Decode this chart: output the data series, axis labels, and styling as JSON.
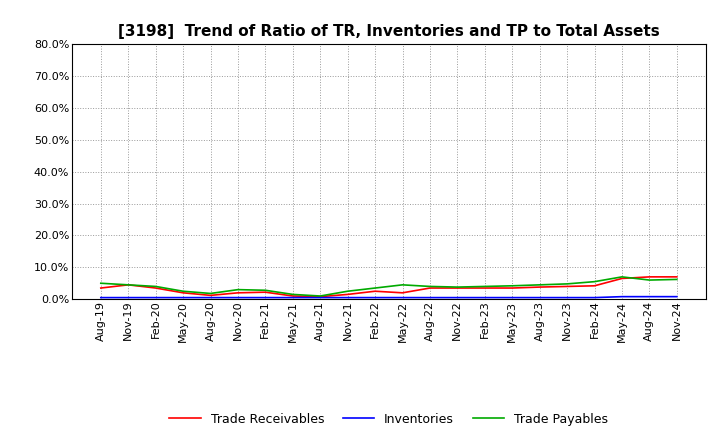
{
  "title": "[3198]  Trend of Ratio of TR, Inventories and TP to Total Assets",
  "x_labels": [
    "Aug-19",
    "Nov-19",
    "Feb-20",
    "May-20",
    "Aug-20",
    "Nov-20",
    "Feb-21",
    "May-21",
    "Aug-21",
    "Nov-21",
    "Feb-22",
    "May-22",
    "Aug-22",
    "Nov-22",
    "Feb-23",
    "May-23",
    "Aug-23",
    "Nov-23",
    "Feb-24",
    "May-24",
    "Aug-24",
    "Nov-24"
  ],
  "trade_receivables": [
    3.5,
    4.5,
    3.5,
    2.0,
    1.2,
    2.0,
    2.2,
    1.0,
    0.8,
    1.5,
    2.5,
    2.0,
    3.5,
    3.5,
    3.5,
    3.5,
    3.8,
    4.0,
    4.2,
    6.5,
    7.0,
    7.0
  ],
  "inventories": [
    0.5,
    0.5,
    0.5,
    0.5,
    0.5,
    0.5,
    0.5,
    0.5,
    0.5,
    0.5,
    0.5,
    0.5,
    0.5,
    0.5,
    0.5,
    0.5,
    0.5,
    0.5,
    0.5,
    0.8,
    0.8,
    0.8
  ],
  "trade_payables": [
    5.0,
    4.5,
    4.0,
    2.5,
    1.8,
    3.0,
    2.8,
    1.5,
    1.0,
    2.5,
    3.5,
    4.5,
    4.0,
    3.8,
    4.0,
    4.2,
    4.5,
    4.8,
    5.5,
    7.0,
    6.0,
    6.2
  ],
  "color_tr": "#ff0000",
  "color_inv": "#0000ff",
  "color_tp": "#00aa00",
  "ylim": [
    0,
    80
  ],
  "yticks": [
    0,
    10,
    20,
    30,
    40,
    50,
    60,
    70,
    80
  ],
  "background_color": "#ffffff",
  "grid_color": "#999999",
  "title_fontsize": 11,
  "tick_fontsize": 8,
  "legend_fontsize": 9
}
